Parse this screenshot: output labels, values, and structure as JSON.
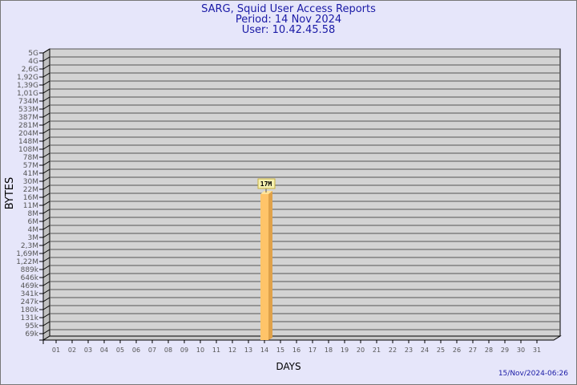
{
  "chart_data": {
    "type": "bar",
    "title": "SARG, Squid User Access Reports",
    "subtitle": [
      "Period: 14 Nov 2024",
      "User: 10.42.45.58"
    ],
    "xlabel": "DAYS",
    "ylabel": "BYTES",
    "y_scale": "log",
    "y_ticks": [
      "5G",
      "4G",
      "2,6G",
      "1,92G",
      "1,39G",
      "1,01G",
      "734M",
      "533M",
      "387M",
      "281M",
      "204M",
      "148M",
      "108M",
      "78M",
      "57M",
      "41M",
      "30M",
      "22M",
      "16M",
      "11M",
      "8M",
      "6M",
      "4M",
      "3M",
      "2,3M",
      "1,69M",
      "1,22M",
      "889k",
      "646k",
      "469k",
      "341k",
      "247k",
      "180k",
      "131k",
      "95k",
      "69k"
    ],
    "categories": [
      "01",
      "02",
      "03",
      "04",
      "05",
      "06",
      "07",
      "08",
      "09",
      "10",
      "11",
      "12",
      "13",
      "14",
      "15",
      "16",
      "17",
      "18",
      "19",
      "20",
      "21",
      "22",
      "23",
      "24",
      "25",
      "26",
      "27",
      "28",
      "29",
      "30",
      "31"
    ],
    "bars": [
      {
        "category": "14",
        "value": "17M",
        "label": "17M"
      }
    ],
    "grid": true,
    "colors": {
      "bar": "#ffc469",
      "bar_side": "#e0a24a",
      "plot": "#d3d3d3",
      "text": "#1a1aa6"
    }
  },
  "footer": "15/Nov/2024-06:26"
}
